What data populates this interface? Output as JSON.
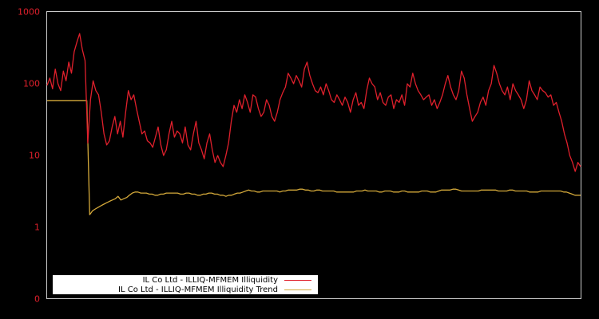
{
  "chart_data": {
    "type": "line",
    "title": "",
    "xlabel": "",
    "ylabel": "",
    "yscale": "log",
    "ylim": [
      0.1,
      1000
    ],
    "y_ticks": [
      "1000",
      "100",
      "10",
      "1",
      "0"
    ],
    "grid": false,
    "legend_position": "lower-left",
    "colors": {
      "background": "#000000",
      "frame": "#cccccc",
      "tick_label": "#e0202c"
    },
    "series": [
      {
        "name": "IL Co Ltd - ILLIQ-MFMEM Illiquidity",
        "color": "#e0202c",
        "values": [
          95,
          120,
          85,
          160,
          100,
          80,
          150,
          110,
          200,
          140,
          280,
          380,
          500,
          300,
          210,
          15,
          60,
          110,
          80,
          70,
          40,
          20,
          14,
          16,
          25,
          35,
          20,
          30,
          18,
          40,
          80,
          60,
          70,
          45,
          30,
          20,
          22,
          16,
          15,
          13,
          18,
          25,
          14,
          10,
          12,
          20,
          30,
          18,
          22,
          20,
          15,
          25,
          14,
          12,
          20,
          30,
          15,
          12,
          9,
          15,
          20,
          12,
          8,
          10,
          8,
          7,
          10,
          15,
          30,
          50,
          40,
          60,
          45,
          70,
          55,
          40,
          70,
          65,
          45,
          35,
          40,
          60,
          50,
          35,
          30,
          40,
          60,
          75,
          90,
          140,
          120,
          100,
          130,
          110,
          90,
          160,
          200,
          130,
          100,
          80,
          75,
          90,
          70,
          100,
          80,
          60,
          55,
          70,
          60,
          50,
          65,
          55,
          40,
          60,
          75,
          50,
          55,
          45,
          80,
          120,
          100,
          90,
          60,
          75,
          55,
          50,
          65,
          70,
          45,
          60,
          55,
          70,
          50,
          100,
          90,
          140,
          100,
          80,
          70,
          60,
          65,
          70,
          50,
          60,
          45,
          55,
          70,
          100,
          130,
          90,
          70,
          60,
          80,
          150,
          120,
          70,
          45,
          30,
          35,
          40,
          55,
          65,
          50,
          80,
          100,
          180,
          140,
          100,
          80,
          70,
          90,
          60,
          100,
          80,
          70,
          60,
          45,
          60,
          110,
          80,
          70,
          60,
          90,
          80,
          75,
          65,
          70,
          50,
          55,
          40,
          30,
          20,
          15,
          10,
          8,
          6,
          8,
          7
        ]
      },
      {
        "name": "IL Co Ltd - ILLIQ-MFMEM Illiquidity Trend",
        "color": "#d4a93a",
        "values": [
          58,
          58,
          58,
          58,
          58,
          58,
          58,
          58,
          58,
          58,
          58,
          58,
          58,
          58,
          58,
          1.5,
          1.7,
          1.8,
          1.9,
          2.0,
          2.1,
          2.2,
          2.3,
          2.4,
          2.5,
          2.7,
          2.4,
          2.5,
          2.6,
          2.8,
          3.0,
          3.1,
          3.1,
          3.0,
          3.0,
          3.0,
          2.9,
          2.9,
          2.8,
          2.8,
          2.9,
          2.9,
          3.0,
          3.0,
          3.0,
          3.0,
          3.0,
          2.9,
          2.9,
          3.0,
          3.0,
          2.9,
          2.9,
          2.8,
          2.8,
          2.9,
          2.9,
          3.0,
          3.0,
          2.9,
          2.9,
          2.8,
          2.8,
          2.7,
          2.8,
          2.8,
          2.9,
          3.0,
          3.0,
          3.1,
          3.2,
          3.3,
          3.2,
          3.2,
          3.1,
          3.1,
          3.2,
          3.2,
          3.2,
          3.2,
          3.2,
          3.2,
          3.1,
          3.2,
          3.2,
          3.3,
          3.3,
          3.3,
          3.3,
          3.4,
          3.4,
          3.3,
          3.3,
          3.2,
          3.2,
          3.3,
          3.3,
          3.2,
          3.2,
          3.2,
          3.2,
          3.2,
          3.1,
          3.1,
          3.1,
          3.1,
          3.1,
          3.1,
          3.1,
          3.2,
          3.2,
          3.2,
          3.3,
          3.2,
          3.2,
          3.2,
          3.2,
          3.1,
          3.1,
          3.2,
          3.2,
          3.2,
          3.1,
          3.1,
          3.1,
          3.2,
          3.2,
          3.1,
          3.1,
          3.1,
          3.1,
          3.1,
          3.2,
          3.2,
          3.2,
          3.1,
          3.1,
          3.1,
          3.2,
          3.3,
          3.3,
          3.3,
          3.3,
          3.4,
          3.4,
          3.3,
          3.2,
          3.2,
          3.2,
          3.2,
          3.2,
          3.2,
          3.2,
          3.3,
          3.3,
          3.3,
          3.3,
          3.3,
          3.3,
          3.2,
          3.2,
          3.2,
          3.2,
          3.3,
          3.3,
          3.2,
          3.2,
          3.2,
          3.2,
          3.2,
          3.1,
          3.1,
          3.1,
          3.1,
          3.2,
          3.2,
          3.2,
          3.2,
          3.2,
          3.2,
          3.2,
          3.2,
          3.1,
          3.1,
          3.0,
          2.9,
          2.8,
          2.8,
          2.8
        ]
      }
    ]
  },
  "legend": {
    "items": [
      {
        "label": "IL Co Ltd - ILLIQ-MFMEM Illiquidity",
        "color": "#e0202c"
      },
      {
        "label": "IL Co Ltd - ILLIQ-MFMEM Illiquidity Trend",
        "color": "#d4a93a"
      }
    ]
  }
}
